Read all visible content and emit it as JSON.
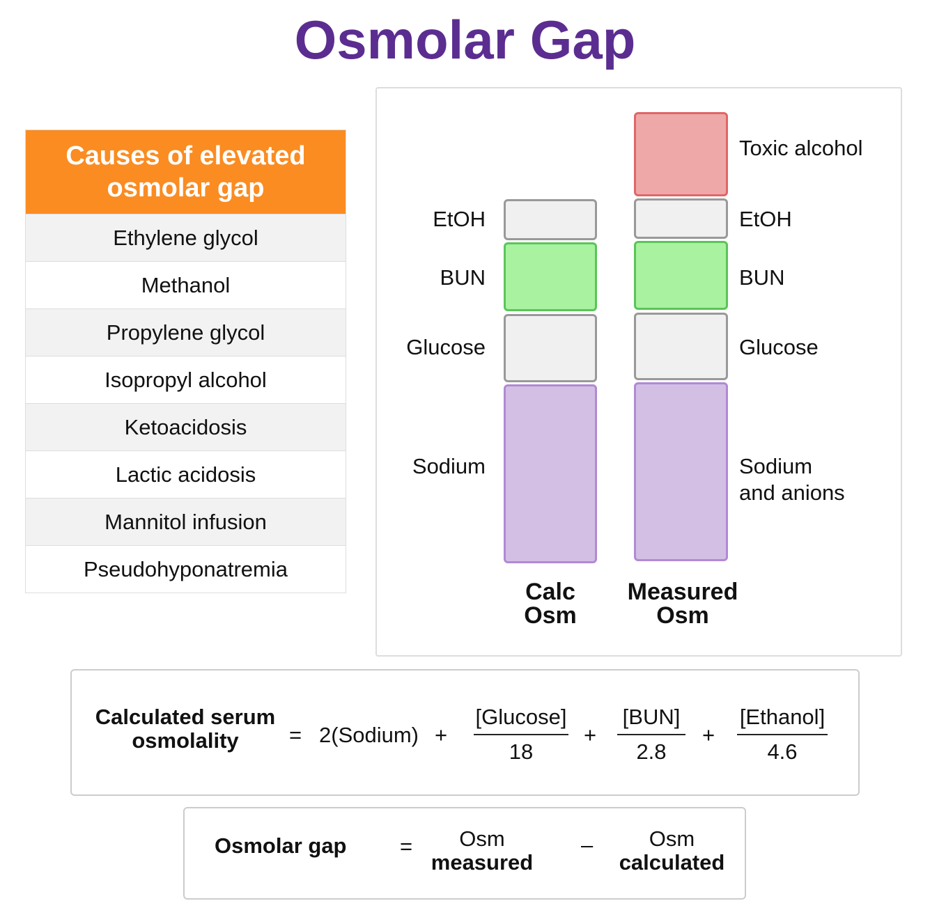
{
  "title": "Osmolar Gap",
  "causes": {
    "header": "Causes of elevated osmolar gap",
    "items": [
      "Ethylene glycol",
      "Methanol",
      "Propylene glycol",
      "Isopropyl alcohol",
      "Ketoacidosis",
      "Lactic acidosis",
      "Mannitol infusion",
      "Pseudohyponatremia"
    ]
  },
  "diagram": {
    "calc": {
      "label_line1": "Calc",
      "label_line2": "Osm",
      "labels": {
        "etoh": "EtOH",
        "bun": "BUN",
        "glucose": "Glucose",
        "sodium": "Sodium"
      }
    },
    "measured": {
      "label_line1": "Measured",
      "label_line2": "Osm",
      "labels": {
        "toxic": "Toxic alcohol",
        "etoh": "EtOH",
        "bun": "BUN",
        "glucose": "Glucose",
        "sodium_line1": "Sodium",
        "sodium_line2": "and anions"
      }
    },
    "colors": {
      "gray": "#f0f0f0",
      "green": "#a8f2a0",
      "purple": "#d3bfe4",
      "red": "#eea8a8"
    }
  },
  "formula": {
    "lhs_line1": "Calculated serum",
    "lhs_line2": "osmolality",
    "eq": "=",
    "term1": "2(Sodium)",
    "plus": "+",
    "glucose_num": "[Glucose]",
    "glucose_den": "18",
    "bun_num": "[BUN]",
    "bun_den": "2.8",
    "ethanol_num": "[Ethanol]",
    "ethanol_den": "4.6"
  },
  "gap": {
    "lhs": "Osmolar gap",
    "eq": "=",
    "a_top": "Osm",
    "a_bottom": "measured",
    "minus": "–",
    "b_top": "Osm",
    "b_bottom": "calculated"
  }
}
